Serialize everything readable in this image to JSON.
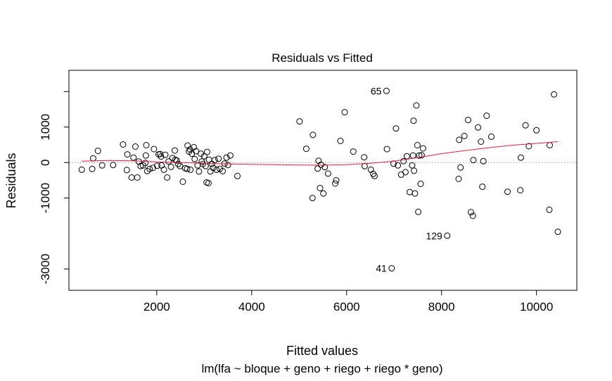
{
  "chart_data": {
    "type": "scatter",
    "title": "Residuals vs Fitted",
    "xlabel": "Fitted values",
    "subtitle": "lm(lfa ~ bloque + geno + riego + riego * geno)",
    "ylabel": "Residuals",
    "xlim": [
      150,
      10850
    ],
    "ylim": [
      -3600,
      2600
    ],
    "x_ticks": [
      2000,
      4000,
      6000,
      8000,
      10000
    ],
    "x_tick_labels": [
      "2000",
      "4000",
      "6000",
      "8000",
      "10000"
    ],
    "y_ticks": [
      -3000,
      -1000,
      0,
      1000,
      2000
    ],
    "y_tick_labels": [
      "-3000",
      "-1000",
      "0",
      "1000",
      "2000"
    ],
    "reference_line": {
      "y": 0,
      "style": "dotted",
      "color": "#999999"
    },
    "point_style": {
      "shape": "open-circle",
      "color": "#000000"
    },
    "smooth_color": "#e0203a",
    "points": [
      [
        420,
        -200
      ],
      [
        640,
        -180
      ],
      [
        660,
        120
      ],
      [
        760,
        330
      ],
      [
        850,
        -80
      ],
      [
        1080,
        -70
      ],
      [
        1290,
        510
      ],
      [
        1370,
        -210
      ],
      [
        1380,
        230
      ],
      [
        1470,
        -420
      ],
      [
        1510,
        140
      ],
      [
        1550,
        450
      ],
      [
        1590,
        -420
      ],
      [
        1620,
        30
      ],
      [
        1660,
        -100
      ],
      [
        1710,
        -80
      ],
      [
        1760,
        -10
      ],
      [
        1770,
        200
      ],
      [
        1780,
        490
      ],
      [
        1800,
        -240
      ],
      [
        1850,
        -180
      ],
      [
        1920,
        -150
      ],
      [
        1940,
        380
      ],
      [
        2010,
        -90
      ],
      [
        2040,
        230
      ],
      [
        2070,
        240
      ],
      [
        2090,
        170
      ],
      [
        2100,
        -80
      ],
      [
        2150,
        -200
      ],
      [
        2180,
        220
      ],
      [
        2220,
        -420
      ],
      [
        2250,
        30
      ],
      [
        2300,
        -120
      ],
      [
        2330,
        130
      ],
      [
        2380,
        340
      ],
      [
        2390,
        80
      ],
      [
        2420,
        60
      ],
      [
        2450,
        -40
      ],
      [
        2490,
        -100
      ],
      [
        2550,
        -540
      ],
      [
        2600,
        -160
      ],
      [
        2640,
        -180
      ],
      [
        2650,
        480
      ],
      [
        2680,
        310
      ],
      [
        2700,
        370
      ],
      [
        2710,
        -200
      ],
      [
        2740,
        250
      ],
      [
        2780,
        430
      ],
      [
        2800,
        100
      ],
      [
        2830,
        320
      ],
      [
        2860,
        -80
      ],
      [
        2890,
        -250
      ],
      [
        2930,
        250
      ],
      [
        2950,
        30
      ],
      [
        2970,
        -40
      ],
      [
        3000,
        180
      ],
      [
        3030,
        -100
      ],
      [
        3050,
        -560
      ],
      [
        3060,
        300
      ],
      [
        3090,
        -580
      ],
      [
        3100,
        80
      ],
      [
        3130,
        -250
      ],
      [
        3160,
        -40
      ],
      [
        3190,
        -150
      ],
      [
        3220,
        70
      ],
      [
        3260,
        -200
      ],
      [
        3300,
        110
      ],
      [
        3330,
        -180
      ],
      [
        3390,
        -240
      ],
      [
        3430,
        -30
      ],
      [
        3470,
        140
      ],
      [
        3500,
        -70
      ],
      [
        3550,
        200
      ],
      [
        3700,
        -380
      ],
      [
        5010,
        1160
      ],
      [
        5150,
        390
      ],
      [
        5280,
        -1000
      ],
      [
        5290,
        780
      ],
      [
        5390,
        -170
      ],
      [
        5410,
        50
      ],
      [
        5440,
        -720
      ],
      [
        5460,
        -60
      ],
      [
        5510,
        -870
      ],
      [
        5540,
        -130
      ],
      [
        5610,
        -310
      ],
      [
        5760,
        -590
      ],
      [
        5780,
        -500
      ],
      [
        5870,
        610
      ],
      [
        5960,
        1420
      ],
      [
        6140,
        310
      ],
      [
        6370,
        150
      ],
      [
        6380,
        -100
      ],
      [
        6510,
        -200
      ],
      [
        6560,
        -320
      ],
      [
        6590,
        -380
      ],
      [
        6840,
        2020
      ],
      [
        6850,
        380
      ],
      [
        6950,
        -2980
      ],
      [
        6990,
        -30
      ],
      [
        7040,
        960
      ],
      [
        7080,
        -80
      ],
      [
        7150,
        -340
      ],
      [
        7200,
        40
      ],
      [
        7240,
        -270
      ],
      [
        7270,
        180
      ],
      [
        7330,
        -830
      ],
      [
        7380,
        -80
      ],
      [
        7400,
        200
      ],
      [
        7410,
        1180
      ],
      [
        7420,
        -230
      ],
      [
        7440,
        -870
      ],
      [
        7470,
        1610
      ],
      [
        7490,
        490
      ],
      [
        7510,
        -1390
      ],
      [
        7530,
        200
      ],
      [
        7560,
        -600
      ],
      [
        7580,
        210
      ],
      [
        7610,
        400
      ],
      [
        8120,
        -2060
      ],
      [
        8360,
        -460
      ],
      [
        8370,
        640
      ],
      [
        8400,
        -140
      ],
      [
        8480,
        750
      ],
      [
        8560,
        1200
      ],
      [
        8620,
        -1400
      ],
      [
        8660,
        -1500
      ],
      [
        8670,
        70
      ],
      [
        8770,
        990
      ],
      [
        8830,
        590
      ],
      [
        8860,
        -680
      ],
      [
        8880,
        40
      ],
      [
        8950,
        1320
      ],
      [
        9050,
        730
      ],
      [
        9390,
        -820
      ],
      [
        9660,
        -780
      ],
      [
        9670,
        140
      ],
      [
        9770,
        1050
      ],
      [
        9840,
        460
      ],
      [
        10000,
        910
      ],
      [
        10270,
        -1330
      ],
      [
        10280,
        490
      ],
      [
        10370,
        1920
      ],
      [
        10450,
        -1950
      ]
    ],
    "labels": [
      {
        "text": "65",
        "x": 6840,
        "y": 2020
      },
      {
        "text": "129",
        "x": 8120,
        "y": -2060
      },
      {
        "text": "41",
        "x": 6950,
        "y": -2980
      }
    ],
    "smooth_line": [
      [
        420,
        40
      ],
      [
        1000,
        60
      ],
      [
        1500,
        50
      ],
      [
        2000,
        20
      ],
      [
        2500,
        0
      ],
      [
        3000,
        -20
      ],
      [
        3500,
        -40
      ],
      [
        4000,
        -50
      ],
      [
        4500,
        -60
      ],
      [
        5000,
        -70
      ],
      [
        5500,
        -75
      ],
      [
        6000,
        -60
      ],
      [
        6500,
        -20
      ],
      [
        7000,
        40
      ],
      [
        7500,
        140
      ],
      [
        8000,
        250
      ],
      [
        8500,
        340
      ],
      [
        9000,
        420
      ],
      [
        9500,
        490
      ],
      [
        10000,
        540
      ],
      [
        10450,
        590
      ]
    ]
  }
}
